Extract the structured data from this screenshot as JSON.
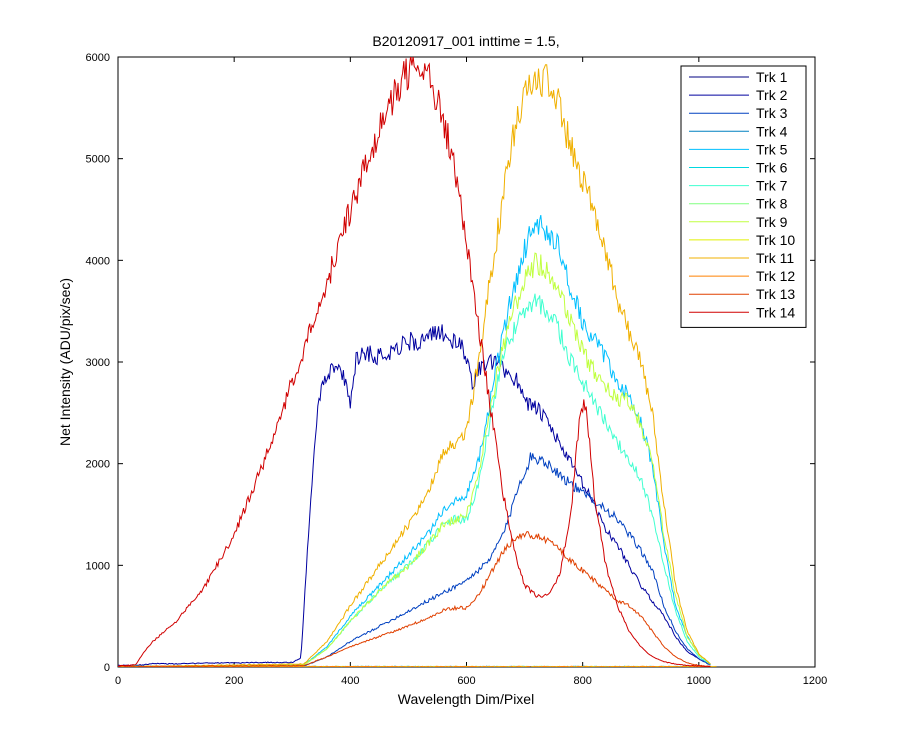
{
  "chart_data": {
    "type": "line",
    "title": "B20120917_001 inttime = 1.5,",
    "xlabel": "Wavelength Dim/Pixel",
    "ylabel": "Net Intensity (ADU/pix/sec)",
    "xlim": [
      0,
      1200
    ],
    "ylim": [
      0,
      6000
    ],
    "xticks": [
      0,
      200,
      400,
      600,
      800,
      1000,
      1200
    ],
    "yticks": [
      0,
      1000,
      2000,
      3000,
      4000,
      5000,
      6000
    ],
    "grid": false,
    "legend_position": "top-right",
    "series": [
      {
        "name": "Trk 1",
        "color": "#000080",
        "points": [
          [
            0,
            2
          ],
          [
            1030,
            2
          ]
        ]
      },
      {
        "name": "Trk 2",
        "color": "#00009f",
        "points": [
          [
            0,
            15
          ],
          [
            40,
            20
          ],
          [
            60,
            35
          ],
          [
            100,
            30
          ],
          [
            150,
            40
          ],
          [
            200,
            40
          ],
          [
            250,
            45
          ],
          [
            300,
            45
          ],
          [
            315,
            90
          ],
          [
            330,
            1500
          ],
          [
            340,
            2300
          ],
          [
            350,
            2800
          ],
          [
            370,
            2950
          ],
          [
            385,
            2900
          ],
          [
            400,
            2600
          ],
          [
            410,
            3050
          ],
          [
            430,
            3100
          ],
          [
            450,
            3050
          ],
          [
            480,
            3150
          ],
          [
            500,
            3200
          ],
          [
            520,
            3200
          ],
          [
            540,
            3250
          ],
          [
            560,
            3300
          ],
          [
            575,
            3200
          ],
          [
            590,
            3150
          ],
          [
            600,
            3050
          ],
          [
            610,
            2800
          ],
          [
            625,
            2950
          ],
          [
            650,
            3000
          ],
          [
            670,
            2900
          ],
          [
            690,
            2800
          ],
          [
            705,
            2600
          ],
          [
            720,
            2550
          ],
          [
            740,
            2400
          ],
          [
            760,
            2200
          ],
          [
            780,
            2000
          ],
          [
            800,
            1800
          ],
          [
            820,
            1600
          ],
          [
            840,
            1350
          ],
          [
            860,
            1200
          ],
          [
            880,
            1000
          ],
          [
            900,
            800
          ],
          [
            920,
            650
          ],
          [
            940,
            500
          ],
          [
            960,
            300
          ],
          [
            980,
            150
          ],
          [
            1000,
            80
          ],
          [
            1020,
            20
          ]
        ]
      },
      {
        "name": "Trk 3",
        "color": "#0040c0",
        "points": [
          [
            0,
            3
          ],
          [
            320,
            10
          ],
          [
            360,
            100
          ],
          [
            400,
            250
          ],
          [
            450,
            400
          ],
          [
            500,
            550
          ],
          [
            550,
            700
          ],
          [
            600,
            850
          ],
          [
            640,
            1050
          ],
          [
            670,
            1400
          ],
          [
            690,
            1800
          ],
          [
            710,
            2050
          ],
          [
            730,
            2050
          ],
          [
            750,
            1950
          ],
          [
            780,
            1800
          ],
          [
            800,
            1700
          ],
          [
            820,
            1650
          ],
          [
            840,
            1550
          ],
          [
            860,
            1450
          ],
          [
            880,
            1300
          ],
          [
            900,
            1150
          ],
          [
            920,
            950
          ],
          [
            940,
            600
          ],
          [
            960,
            350
          ],
          [
            980,
            180
          ],
          [
            1000,
            80
          ],
          [
            1020,
            20
          ]
        ]
      },
      {
        "name": "Trk 4",
        "color": "#0080c0",
        "points": [
          [
            0,
            3
          ],
          [
            1030,
            3
          ]
        ]
      },
      {
        "name": "Trk 5",
        "color": "#00bfff",
        "points": [
          [
            0,
            3
          ],
          [
            320,
            20
          ],
          [
            360,
            200
          ],
          [
            400,
            500
          ],
          [
            450,
            800
          ],
          [
            500,
            1100
          ],
          [
            540,
            1350
          ],
          [
            560,
            1550
          ],
          [
            580,
            1650
          ],
          [
            600,
            1700
          ],
          [
            620,
            2000
          ],
          [
            640,
            2600
          ],
          [
            660,
            3200
          ],
          [
            680,
            3700
          ],
          [
            700,
            4100
          ],
          [
            720,
            4400
          ],
          [
            740,
            4300
          ],
          [
            760,
            4100
          ],
          [
            780,
            3700
          ],
          [
            800,
            3400
          ],
          [
            820,
            3200
          ],
          [
            840,
            3050
          ],
          [
            860,
            2800
          ],
          [
            880,
            2650
          ],
          [
            900,
            2400
          ],
          [
            920,
            2000
          ],
          [
            940,
            1200
          ],
          [
            960,
            600
          ],
          [
            980,
            300
          ],
          [
            1000,
            120
          ],
          [
            1020,
            30
          ]
        ]
      },
      {
        "name": "Trk 6",
        "color": "#00d8e0",
        "points": [
          [
            0,
            3
          ],
          [
            1030,
            3
          ]
        ]
      },
      {
        "name": "Trk 7",
        "color": "#40ffd0",
        "points": [
          [
            0,
            3
          ],
          [
            320,
            20
          ],
          [
            360,
            180
          ],
          [
            400,
            450
          ],
          [
            450,
            750
          ],
          [
            500,
            1000
          ],
          [
            540,
            1250
          ],
          [
            560,
            1400
          ],
          [
            580,
            1450
          ],
          [
            600,
            1450
          ],
          [
            620,
            1800
          ],
          [
            640,
            2400
          ],
          [
            660,
            3000
          ],
          [
            680,
            3300
          ],
          [
            700,
            3500
          ],
          [
            720,
            3600
          ],
          [
            740,
            3500
          ],
          [
            760,
            3300
          ],
          [
            780,
            3000
          ],
          [
            800,
            2800
          ],
          [
            820,
            2600
          ],
          [
            840,
            2400
          ],
          [
            860,
            2200
          ],
          [
            880,
            2050
          ],
          [
            900,
            1850
          ],
          [
            920,
            1500
          ],
          [
            940,
            1000
          ],
          [
            960,
            550
          ],
          [
            980,
            250
          ],
          [
            1000,
            100
          ],
          [
            1020,
            25
          ]
        ]
      },
      {
        "name": "Trk 8",
        "color": "#80ff80",
        "points": [
          [
            0,
            3
          ],
          [
            1030,
            3
          ]
        ]
      },
      {
        "name": "Trk 9",
        "color": "#c0ff40",
        "points": [
          [
            0,
            3
          ],
          [
            320,
            20
          ],
          [
            360,
            180
          ],
          [
            400,
            450
          ],
          [
            450,
            750
          ],
          [
            500,
            1000
          ],
          [
            540,
            1250
          ],
          [
            560,
            1400
          ],
          [
            580,
            1450
          ],
          [
            600,
            1500
          ],
          [
            620,
            1900
          ],
          [
            640,
            2500
          ],
          [
            660,
            3100
          ],
          [
            680,
            3500
          ],
          [
            700,
            3800
          ],
          [
            720,
            4000
          ],
          [
            740,
            3900
          ],
          [
            760,
            3700
          ],
          [
            780,
            3400
          ],
          [
            800,
            3100
          ],
          [
            820,
            2900
          ],
          [
            840,
            2750
          ],
          [
            860,
            2650
          ],
          [
            880,
            2600
          ],
          [
            900,
            2400
          ],
          [
            920,
            2000
          ],
          [
            940,
            1300
          ],
          [
            960,
            700
          ],
          [
            980,
            300
          ],
          [
            1000,
            120
          ],
          [
            1020,
            30
          ]
        ]
      },
      {
        "name": "Trk 10",
        "color": "#e0f000",
        "points": [
          [
            0,
            3
          ],
          [
            1030,
            3
          ]
        ]
      },
      {
        "name": "Trk 11",
        "color": "#f0b000",
        "points": [
          [
            0,
            3
          ],
          [
            320,
            30
          ],
          [
            360,
            250
          ],
          [
            400,
            600
          ],
          [
            450,
            1000
          ],
          [
            500,
            1400
          ],
          [
            540,
            1800
          ],
          [
            560,
            2100
          ],
          [
            580,
            2200
          ],
          [
            600,
            2300
          ],
          [
            620,
            3000
          ],
          [
            640,
            3800
          ],
          [
            660,
            4500
          ],
          [
            680,
            5200
          ],
          [
            700,
            5600
          ],
          [
            720,
            5800
          ],
          [
            740,
            5750
          ],
          [
            760,
            5500
          ],
          [
            780,
            5100
          ],
          [
            800,
            4800
          ],
          [
            820,
            4500
          ],
          [
            840,
            4100
          ],
          [
            860,
            3600
          ],
          [
            880,
            3300
          ],
          [
            900,
            3000
          ],
          [
            920,
            2500
          ],
          [
            940,
            1600
          ],
          [
            960,
            800
          ],
          [
            980,
            350
          ],
          [
            1000,
            130
          ],
          [
            1020,
            30
          ]
        ]
      },
      {
        "name": "Trk 12",
        "color": "#ff8000",
        "points": [
          [
            0,
            3
          ],
          [
            1030,
            3
          ]
        ]
      },
      {
        "name": "Trk 13",
        "color": "#e04000",
        "points": [
          [
            0,
            3
          ],
          [
            320,
            15
          ],
          [
            360,
            100
          ],
          [
            400,
            200
          ],
          [
            450,
            300
          ],
          [
            500,
            400
          ],
          [
            540,
            500
          ],
          [
            560,
            560
          ],
          [
            580,
            580
          ],
          [
            600,
            580
          ],
          [
            620,
            700
          ],
          [
            640,
            900
          ],
          [
            660,
            1100
          ],
          [
            680,
            1250
          ],
          [
            700,
            1300
          ],
          [
            720,
            1300
          ],
          [
            740,
            1250
          ],
          [
            760,
            1150
          ],
          [
            780,
            1050
          ],
          [
            800,
            950
          ],
          [
            820,
            850
          ],
          [
            840,
            750
          ],
          [
            860,
            650
          ],
          [
            880,
            600
          ],
          [
            900,
            500
          ],
          [
            920,
            350
          ],
          [
            940,
            200
          ],
          [
            960,
            100
          ],
          [
            980,
            40
          ],
          [
            1000,
            15
          ],
          [
            1020,
            5
          ]
        ]
      },
      {
        "name": "Trk 14",
        "color": "#d00000",
        "points": [
          [
            0,
            10
          ],
          [
            30,
            20
          ],
          [
            45,
            150
          ],
          [
            60,
            250
          ],
          [
            100,
            450
          ],
          [
            150,
            800
          ],
          [
            200,
            1300
          ],
          [
            250,
            2000
          ],
          [
            300,
            2800
          ],
          [
            350,
            3600
          ],
          [
            400,
            4500
          ],
          [
            450,
            5300
          ],
          [
            480,
            5700
          ],
          [
            500,
            5850
          ],
          [
            520,
            5850
          ],
          [
            540,
            5750
          ],
          [
            560,
            5400
          ],
          [
            580,
            4900
          ],
          [
            600,
            4200
          ],
          [
            620,
            3400
          ],
          [
            640,
            2600
          ],
          [
            660,
            1800
          ],
          [
            680,
            1200
          ],
          [
            700,
            800
          ],
          [
            720,
            700
          ],
          [
            740,
            700
          ],
          [
            760,
            900
          ],
          [
            780,
            1500
          ],
          [
            795,
            2500
          ],
          [
            805,
            2600
          ],
          [
            820,
            1700
          ],
          [
            840,
            1000
          ],
          [
            860,
            600
          ],
          [
            880,
            350
          ],
          [
            900,
            200
          ],
          [
            920,
            100
          ],
          [
            940,
            50
          ],
          [
            960,
            30
          ],
          [
            980,
            15
          ],
          [
            1000,
            10
          ],
          [
            1020,
            5
          ]
        ]
      }
    ]
  }
}
